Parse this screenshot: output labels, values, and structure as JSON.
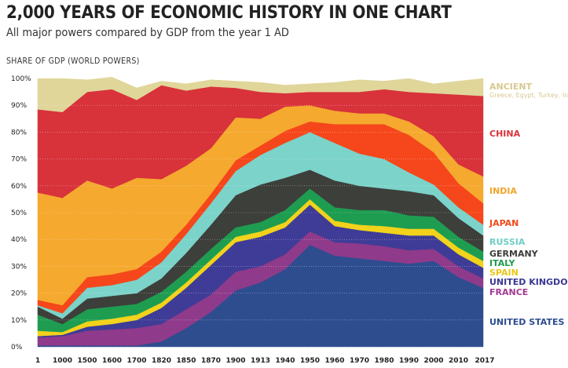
{
  "title": "2,000 YEARS OF ECONOMIC HISTORY IN ONE CHART",
  "subtitle": "All major powers compared by GDP from the year 1 AD",
  "chart_data": {
    "type": "area",
    "stacked": true,
    "ylabel": "SHARE OF GDP (WORLD POWERS)",
    "ylim": [
      0,
      100
    ],
    "yticks": [
      "0%",
      "10%",
      "20%",
      "30%",
      "40%",
      "50%",
      "60%",
      "70%",
      "80%",
      "90%",
      "100%"
    ],
    "x": [
      "1",
      "1000",
      "1500",
      "1600",
      "1700",
      "1820",
      "1850",
      "1870",
      "1900",
      "1913",
      "1940",
      "1950",
      "1960",
      "1970",
      "1980",
      "1990",
      "2000",
      "2010",
      "2017"
    ],
    "grid": true,
    "series": [
      {
        "name": "UNITED STATES",
        "color": "#2e4d8f",
        "values": [
          0.5,
          0.5,
          0.5,
          0.5,
          0.5,
          2,
          7,
          13,
          21,
          24,
          29,
          38,
          34,
          33,
          32,
          31,
          32,
          26,
          22
        ]
      },
      {
        "name": "FRANCE",
        "color": "#8f3a8a",
        "values": [
          3,
          3.5,
          5.5,
          6,
          6.5,
          6.5,
          7,
          6.5,
          7,
          6,
          5.5,
          5,
          5,
          5.5,
          5.5,
          5,
          4.5,
          4,
          3.5
        ]
      },
      {
        "name": "UNITED KINGDOM",
        "color": "#3e3c96",
        "values": [
          0.5,
          0.5,
          1.5,
          2,
          3,
          6,
          8,
          11,
          11,
          11,
          10,
          10,
          6,
          5,
          5,
          5.5,
          5,
          4.5,
          4
        ]
      },
      {
        "name": "SPAIN",
        "color": "#f2d21b",
        "values": [
          2,
          1,
          2,
          2,
          2,
          2,
          2,
          2,
          2,
          2,
          2,
          2,
          2,
          2,
          2.5,
          2.5,
          2.5,
          2.5,
          2.5
        ]
      },
      {
        "name": "ITALY",
        "color": "#1e9d51",
        "values": [
          6,
          3,
          4.5,
          4.5,
          4,
          4,
          4,
          4,
          3.5,
          3.5,
          4.5,
          4,
          5,
          5.5,
          6,
          5,
          4.5,
          4,
          3.5
        ]
      },
      {
        "name": "GERMANY",
        "color": "#3d3f3b",
        "values": [
          3,
          2,
          4,
          4,
          4,
          5,
          7,
          9,
          12,
          14,
          12,
          7,
          10,
          9,
          8,
          9,
          8,
          7,
          6
        ]
      },
      {
        "name": "RUSSIA",
        "color": "#7bd3c9",
        "values": [
          0.5,
          2,
          4,
          4,
          5,
          6,
          7,
          8,
          9,
          11,
          13,
          14,
          14,
          12,
          11,
          7,
          4,
          4,
          4
        ]
      },
      {
        "name": "JAPAN",
        "color": "#f5471b",
        "values": [
          2,
          3,
          4,
          4,
          4,
          4,
          3.5,
          3.5,
          4,
          3.5,
          4.5,
          4,
          7,
          11,
          13,
          14,
          12,
          9,
          8
        ]
      },
      {
        "name": "INDIA",
        "color": "#f5a92e",
        "values": [
          40,
          40,
          36,
          32,
          34,
          27,
          22,
          17,
          16,
          10,
          9,
          6,
          5,
          4,
          4,
          5,
          6,
          7,
          10
        ]
      },
      {
        "name": "CHINA",
        "color": "#d8323b",
        "values": [
          31,
          32,
          33,
          37,
          29,
          35,
          28,
          23,
          11,
          10,
          5,
          5,
          7,
          8,
          9,
          11,
          16,
          26,
          30
        ]
      },
      {
        "name": "ANCIENT",
        "color": "#e0d69a",
        "values": [
          11.5,
          12.5,
          4.5,
          4.5,
          4.5,
          1.5,
          2.5,
          2.5,
          2.5,
          3.5,
          3,
          3,
          3.5,
          4.5,
          3,
          5,
          3.5,
          5,
          6.5
        ]
      }
    ],
    "legend": [
      {
        "label": "ANCIENT",
        "sub": "Greece, Egypt, Turkey, Iran",
        "color": "#d7c98f"
      },
      {
        "label": "CHINA",
        "color": "#d8323b"
      },
      {
        "label": "INDIA",
        "color": "#f0a52a"
      },
      {
        "label": "JAPAN",
        "color": "#f04a1a"
      },
      {
        "label": "RUSSIA",
        "color": "#6fcfc4"
      },
      {
        "label": "GERMANY",
        "color": "#3a3c39"
      },
      {
        "label": "ITALY",
        "color": "#1f9b4f"
      },
      {
        "label": "SPAIN",
        "color": "#e8c619"
      },
      {
        "label": "UNITED KINGDOM",
        "color": "#3a3892"
      },
      {
        "label": "FRANCE",
        "color": "#a23a92"
      },
      {
        "label": "UNITED STATES",
        "color": "#2e4d8f"
      }
    ],
    "legend_placement": "right"
  }
}
